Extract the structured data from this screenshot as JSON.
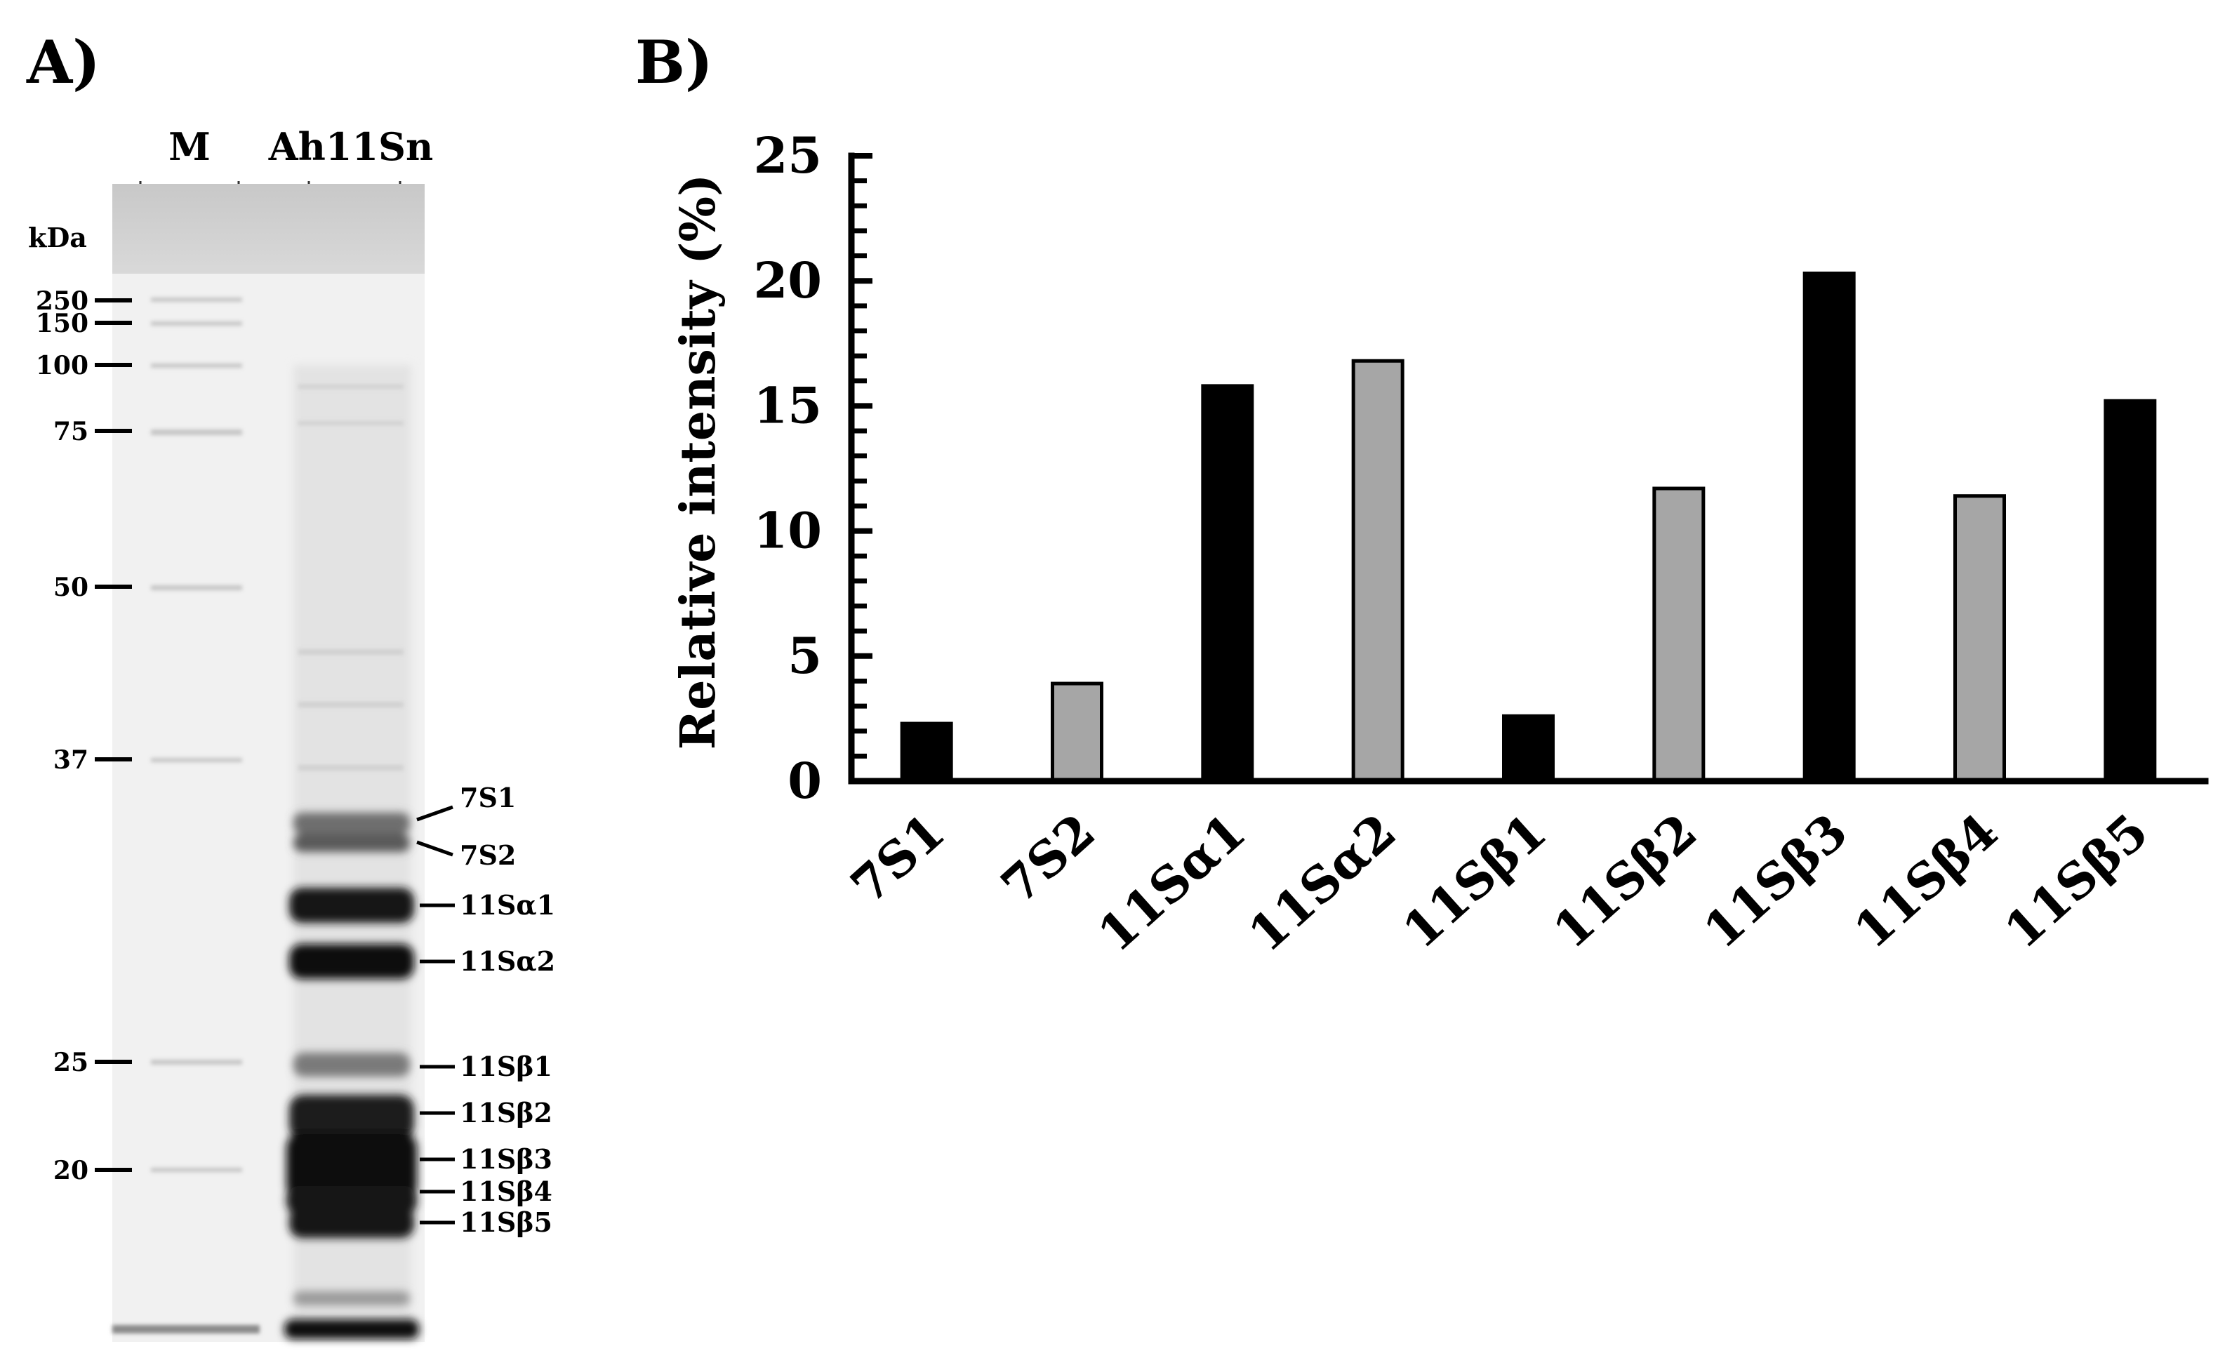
{
  "panel_a": {
    "label": "A)",
    "lanes": [
      "M",
      "Ah11Sn"
    ],
    "unit": "kDa",
    "mw_markers": [
      "250",
      "150",
      "100",
      "75",
      "50",
      "37",
      "25",
      "20"
    ],
    "band_labels": [
      "7S1",
      "7S2",
      "11Sα1",
      "11Sα2",
      "11Sβ1",
      "11Sβ2",
      "11Sβ3",
      "11Sβ4",
      "11Sβ5"
    ]
  },
  "panel_b": {
    "label": "B)"
  },
  "chart_data": {
    "type": "bar",
    "title": "",
    "xlabel": "",
    "ylabel": "Relative intensity (%)",
    "ylim": [
      0,
      25
    ],
    "yticks": [
      0,
      5,
      10,
      15,
      20,
      25
    ],
    "grid": false,
    "categories": [
      "7S1",
      "7S2",
      "11Sα1",
      "11Sα2",
      "11Sβ1",
      "11Sβ2",
      "11Sβ3",
      "11Sβ4",
      "11Sβ5"
    ],
    "values": [
      2.3,
      3.9,
      15.8,
      16.8,
      2.6,
      11.7,
      20.3,
      11.4,
      15.2
    ],
    "bar_colors": [
      "#000000",
      "#a6a6a6",
      "#000000",
      "#a6a6a6",
      "#000000",
      "#a6a6a6",
      "#000000",
      "#a6a6a6",
      "#000000"
    ]
  }
}
